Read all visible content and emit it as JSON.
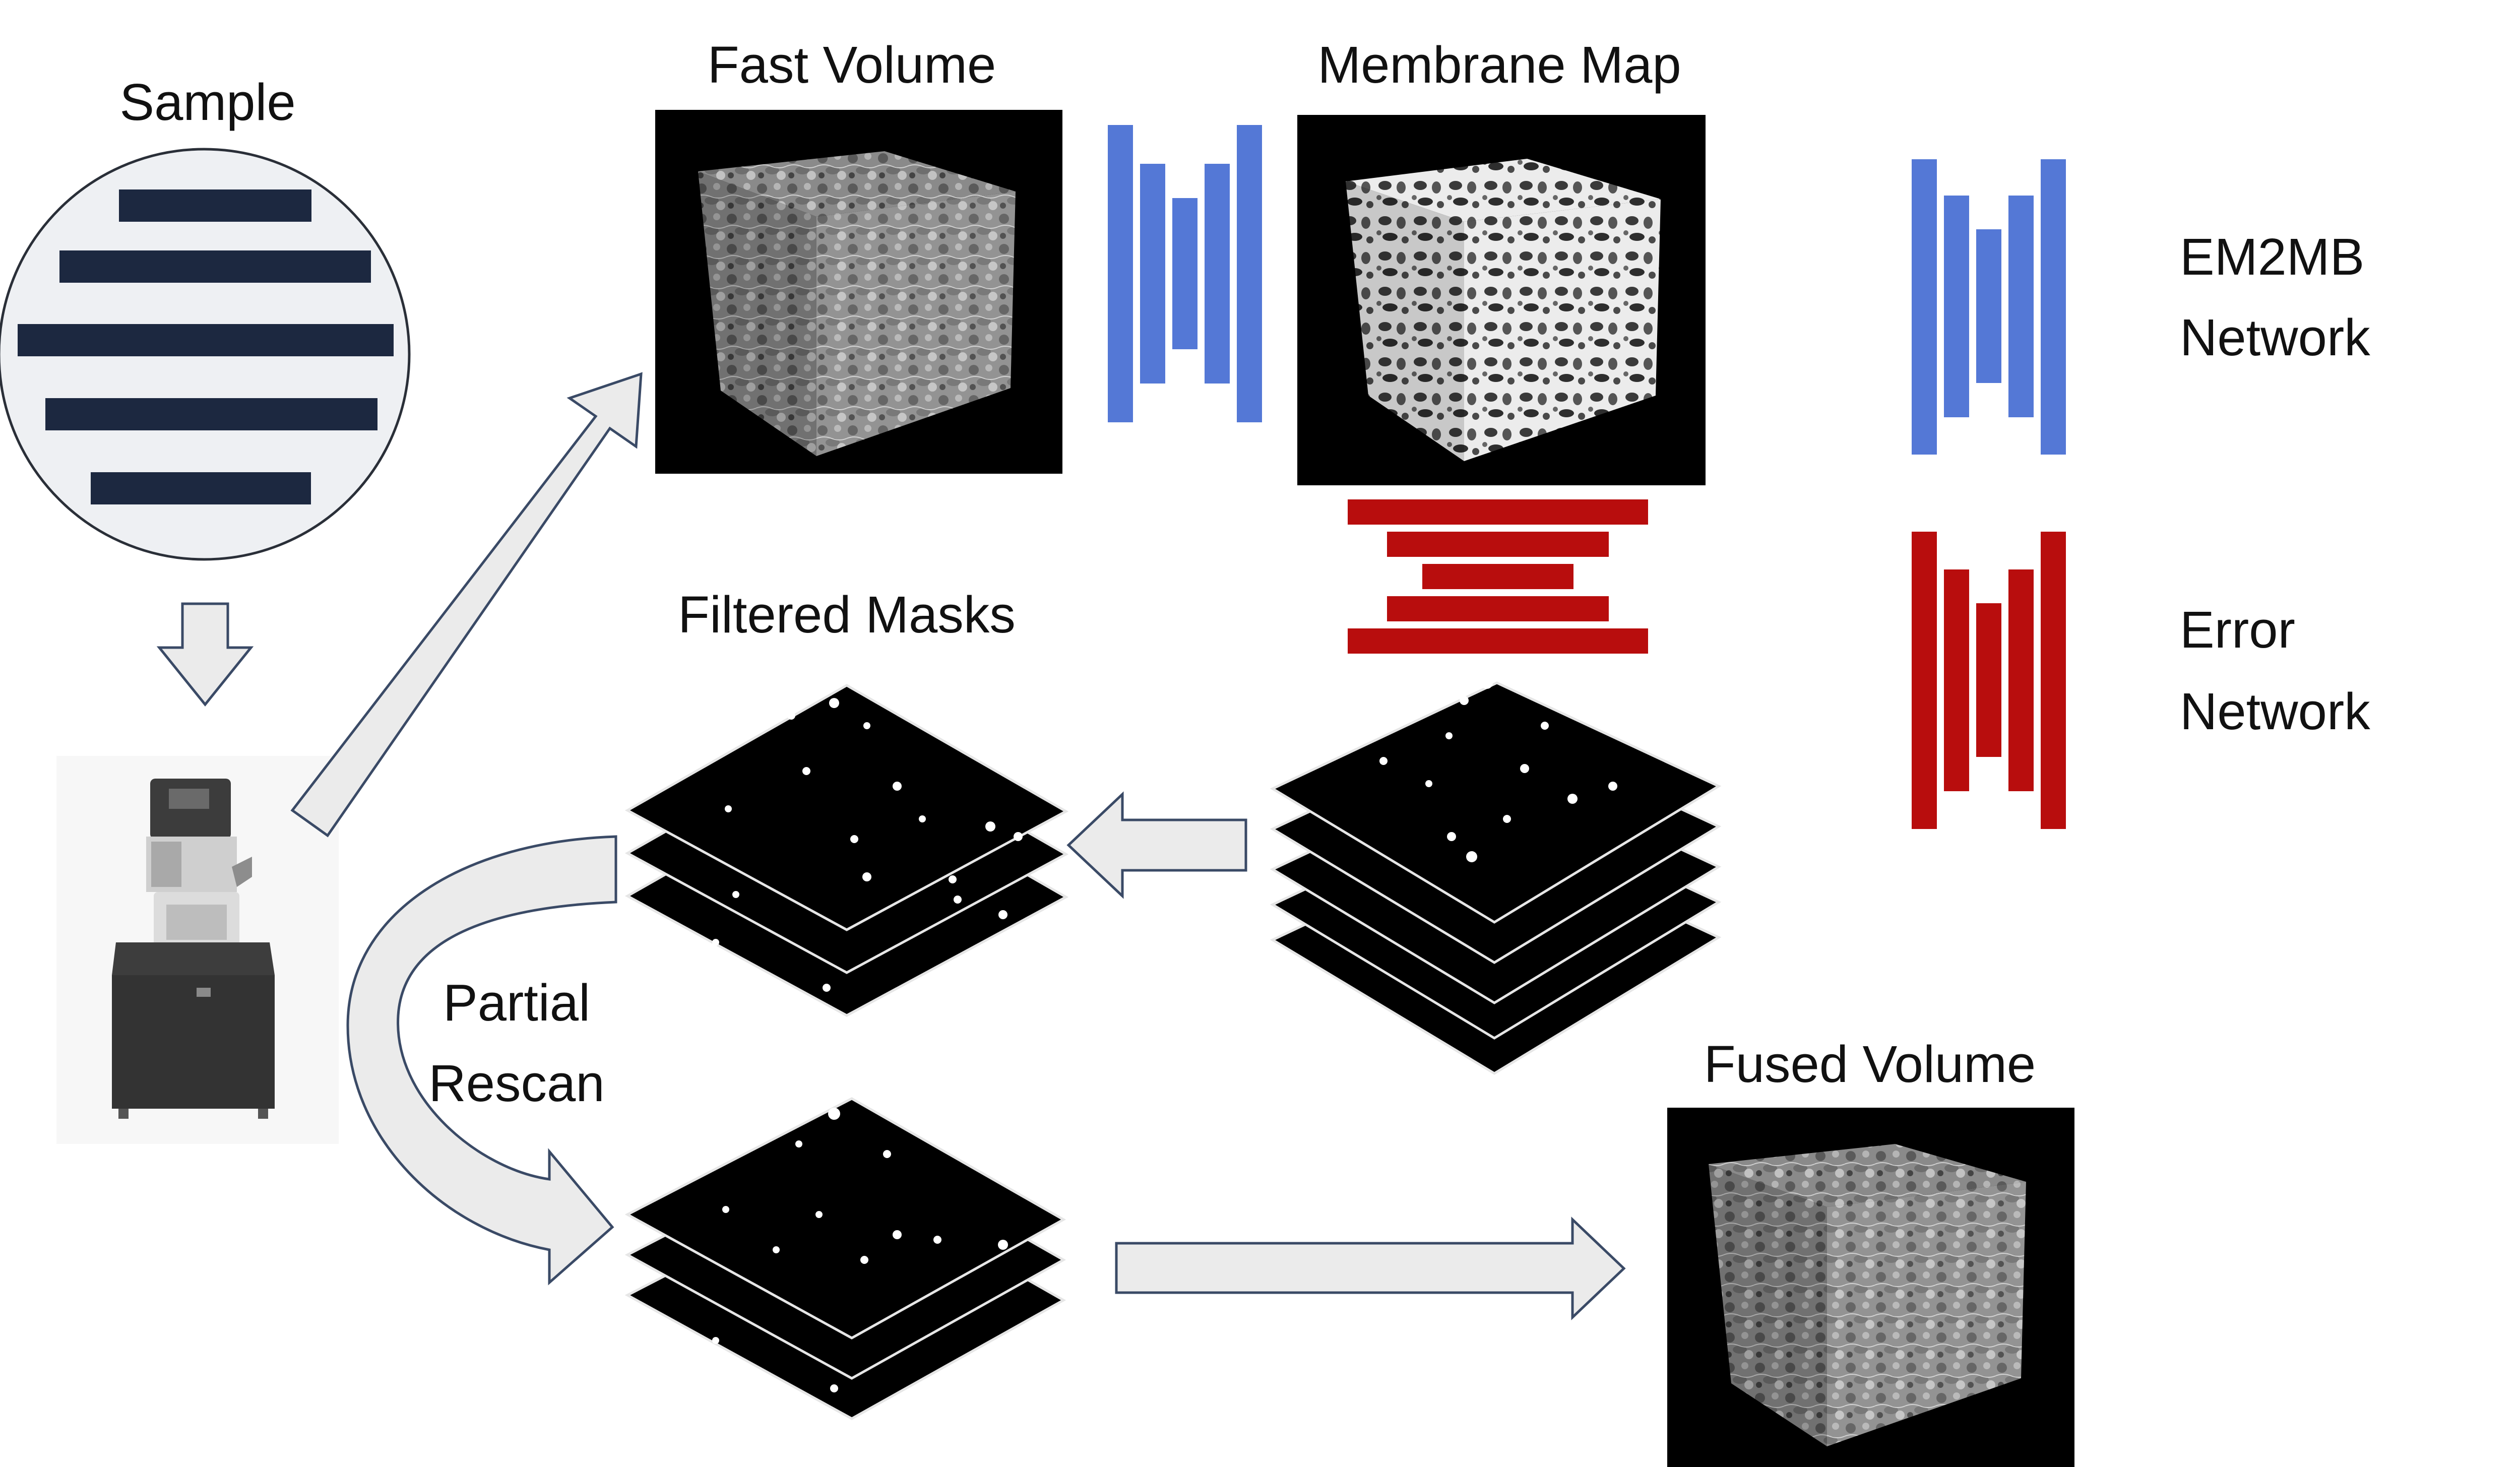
{
  "labels": {
    "sample": "Sample",
    "fast_volume": "Fast Volume",
    "membrane_map": "Membrane Map",
    "filtered_masks": "Filtered Masks",
    "partial_rescan_line1": "Partial",
    "partial_rescan_line2": "Rescan",
    "fused_volume": "Fused Volume",
    "legend_em2mb_line1": "EM2MB",
    "legend_em2mb_line2": "Network",
    "legend_error_line1": "Error",
    "legend_error_line2": "Network"
  },
  "colors": {
    "em2mb_network": "#5478d6",
    "error_network": "#b80d0d",
    "sample_bars": "#1c2840",
    "sample_disc": "#eef0f3",
    "arrow_fill": "#ebebeb"
  }
}
